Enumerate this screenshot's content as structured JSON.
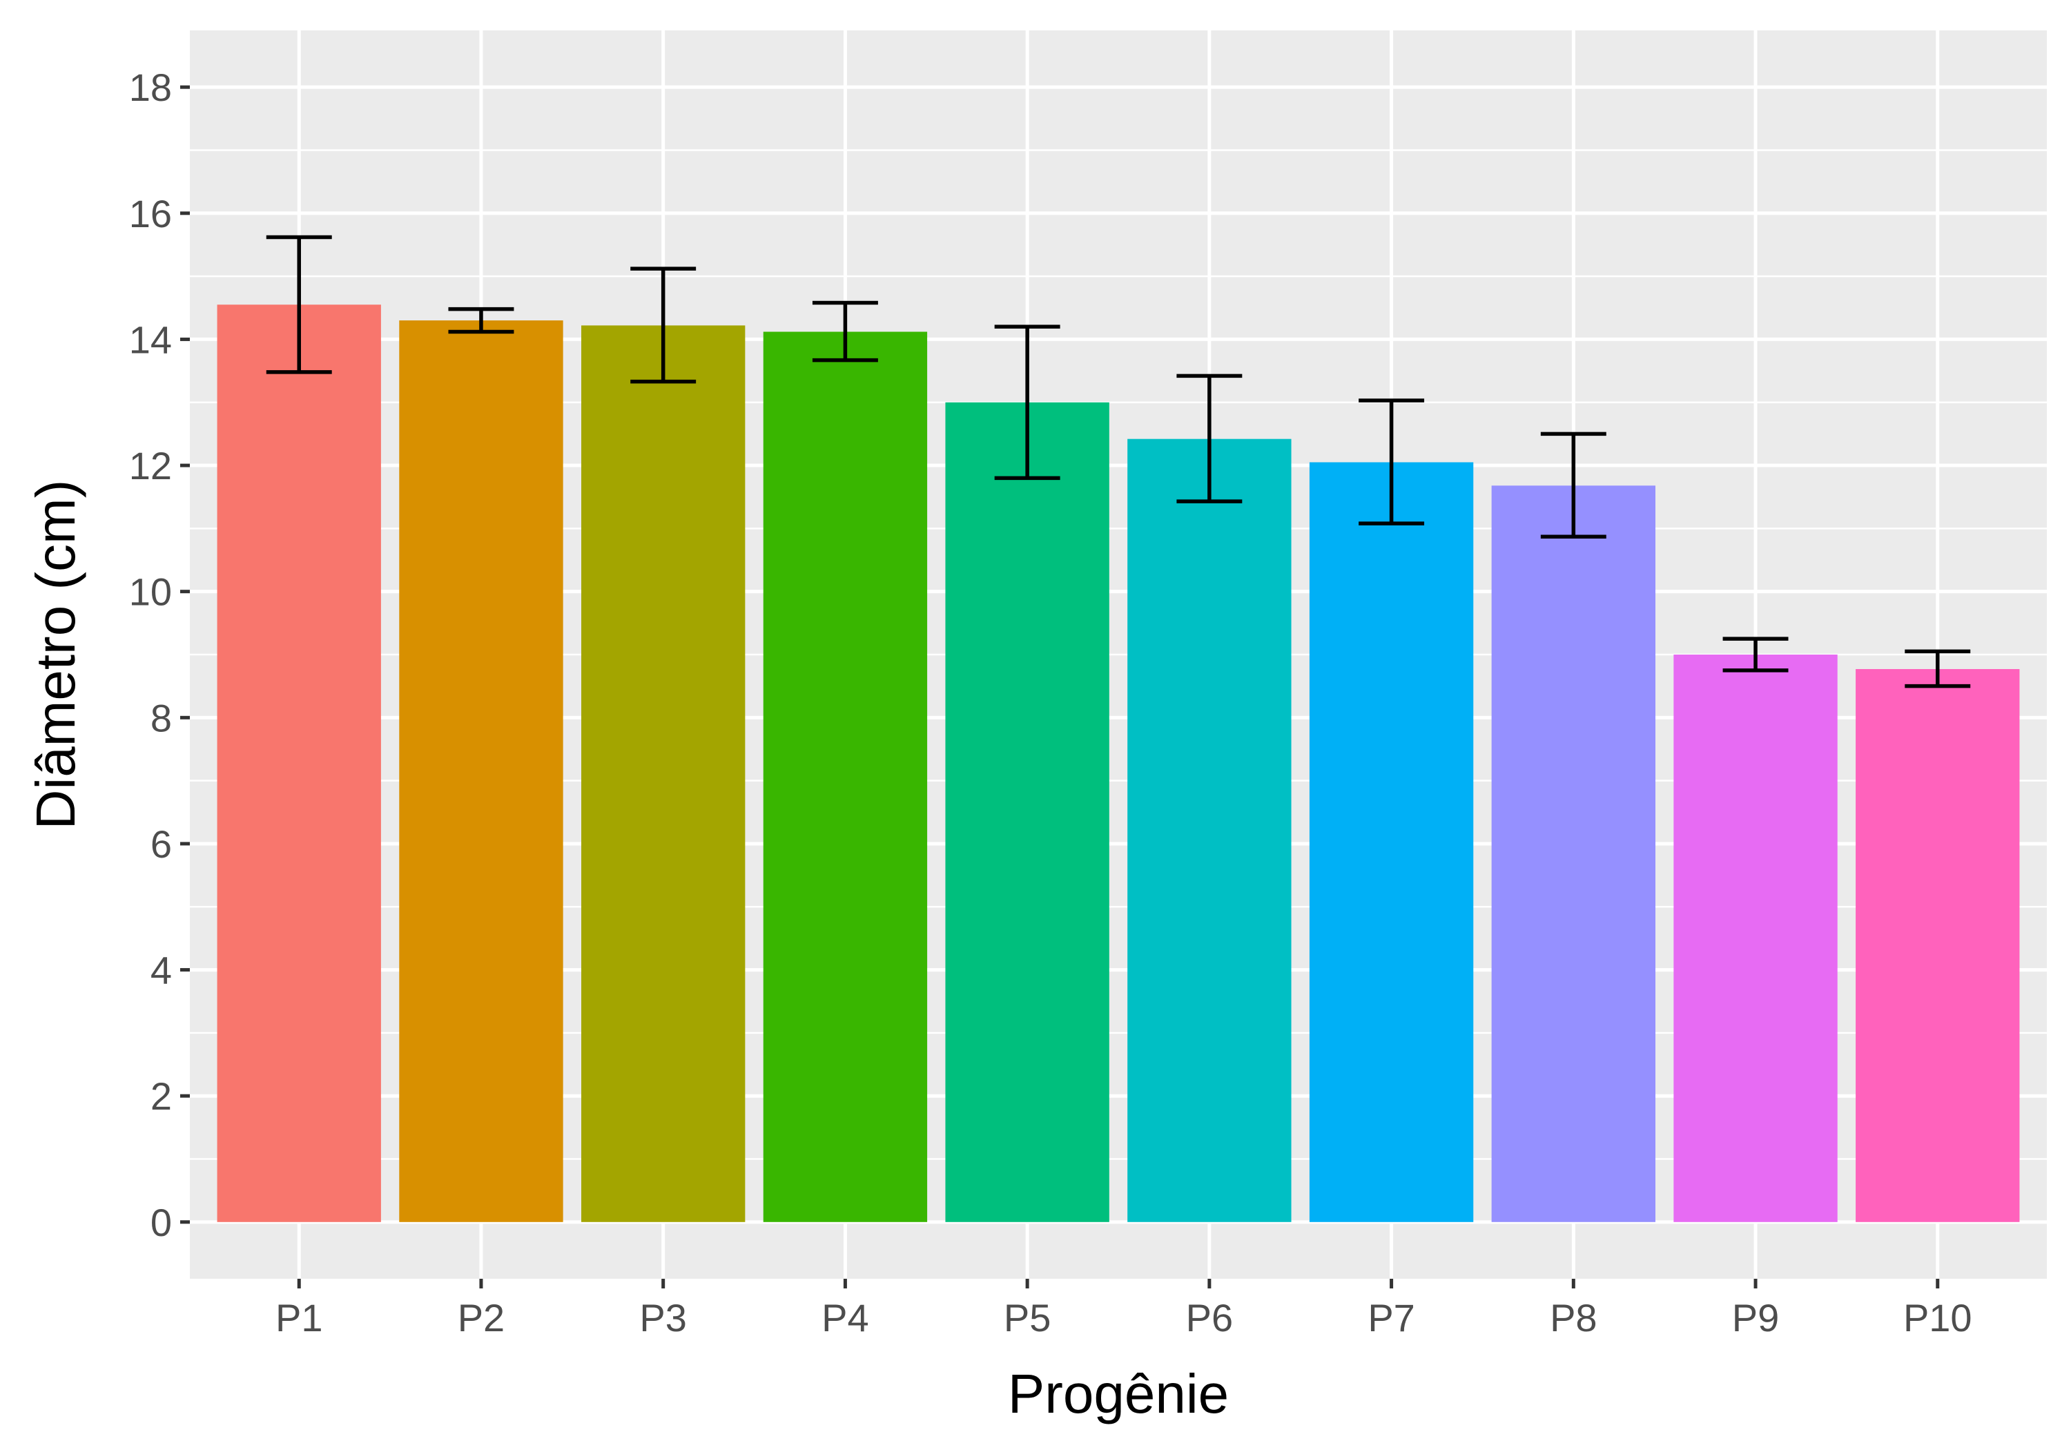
{
  "chart_data": {
    "type": "bar",
    "title": "",
    "xlabel": "Progênie",
    "ylabel": "Diâmetro (cm)",
    "categories": [
      "P1",
      "P2",
      "P3",
      "P4",
      "P5",
      "P6",
      "P7",
      "P8",
      "P9",
      "P10"
    ],
    "values": [
      14.55,
      14.3,
      14.22,
      14.12,
      13.0,
      12.42,
      12.05,
      11.68,
      9.0,
      8.77
    ],
    "error_low": [
      13.48,
      14.12,
      13.33,
      13.67,
      11.8,
      11.43,
      11.08,
      10.87,
      8.75,
      8.5
    ],
    "error_high": [
      15.62,
      14.48,
      15.12,
      14.58,
      14.2,
      13.42,
      13.03,
      12.5,
      9.25,
      9.05
    ],
    "colors": [
      "#F8766D",
      "#D89000",
      "#A3A500",
      "#39B600",
      "#00BF7D",
      "#00BFC4",
      "#00B0F6",
      "#9590FF",
      "#E76BF3",
      "#FF62BC"
    ],
    "yticks": [
      "0",
      "2",
      "4",
      "6",
      "8",
      "10",
      "12",
      "14",
      "16",
      "18"
    ],
    "ylim": [
      -0.9,
      18.9
    ],
    "grid": true,
    "legend": "none"
  }
}
